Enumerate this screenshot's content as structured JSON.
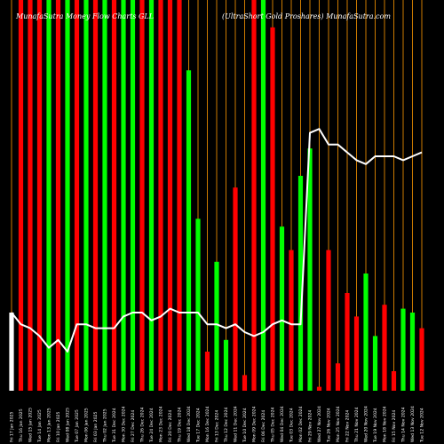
{
  "chart_data": {
    "type": "bar",
    "title": "MunafaSutra Money Flow Charts GLL",
    "subtitle": "(UltraShort Gold Proshares) MunafaSutra.com",
    "x": [
      "Fri 17 Jan 2025",
      "Thu 16 Jan 2025",
      "Wed 15 Jan 2025",
      "Tue 14 Jan 2025",
      "Mon 13 Jan 2025",
      "Fri 10 Jan 2025",
      "Wed 08 Jan 2025",
      "Tue 07 Jan 2025",
      "Mon 06 Jan 2025",
      "Fri 03 Jan 2025",
      "Thu 02 Jan 2025",
      "Tue 31 Dec 2024",
      "Mon 30 Dec 2024",
      "Fri 27 Dec 2024",
      "Thu 26 Dec 2024",
      "Tue 24 Dec 2024",
      "Mon 23 Dec 2024",
      "Fri 20 Dec 2024",
      "Thu 19 Dec 2024",
      "Wed 18 Dec 2024",
      "Tue 17 Dec 2024",
      "Mon 16 Dec 2024",
      "Fri 13 Dec 2024",
      "Thu 12 Dec 2024",
      "Wed 11 Dec 2024",
      "Tue 10 Dec 2024",
      "Mon 09 Dec 2024",
      "Fri 06 Dec 2024",
      "Thu 05 Dec 2024",
      "Wed 04 Dec 2024",
      "Tue 03 Dec 2024",
      "Mon 02 Dec 2024",
      "Fri 29 Nov 2024",
      "Wed 27 Nov 2024",
      "Tue 26 Nov 2024",
      "Mon 25 Nov 2024",
      "Fri 22 Nov 2024",
      "Thu 21 Nov 2024",
      "Wed 20 Nov 2024",
      "Tue 19 Nov 2024",
      "Mon 18 Nov 2024",
      "Fri 15 Nov 2024",
      "Thu 14 Nov 2024",
      "Wed 13 Nov 2024",
      "Tue 12 Nov 2024"
    ],
    "x_tick_labels": [
      "Fri 17 Jan 2025",
      "Thu 16 Jan 2025",
      "Wed 15 Jan 2025",
      "Tue 14 Jan 2025",
      "Mon 13 Jan 2025",
      "Fri 10 Jan 2025",
      "Wed 08 Jan 2025",
      "Tue 07 Jan 2025",
      "Mon 06 Jan 2025",
      "Fri 03 Jan 2025",
      "Thu 02 Jan 2025",
      "Tue 31 Dec 2024",
      "Mon 30 Dec 2024",
      "Fri 27 Dec 2024",
      "Thu 26 Dec 2024",
      "Tue 24 Dec 2024",
      "Mon 23 Dec 2024",
      "Fri 20 Dec 2024",
      "Thu 19 Dec 2024",
      "Wed 18 Dec 2024",
      "Tue 17 Dec 2024",
      "Mon 16 Dec 2024",
      "Fri 13 Dec 2024",
      "Thu 12 Dec 2024",
      "Wed 11 Dec 2024",
      "Tue 10 Dec 2024",
      "Mon 09 Dec 2024",
      "Fri 06 Dec 2024",
      "Thu 05 Dec 2024",
      "Wed 04 Dec 2024",
      "Tue 03 Dec 2024",
      "Mon 02 Dec 2024",
      "Fri 29 Nov 2024",
      "Wed 27 Nov 2024",
      "Tue 26 Nov 2024",
      "Mon 25 Nov 2024",
      "Fri 22 Nov 2024",
      "Thu 21 Nov 2024",
      "Wed 20 Nov 2024",
      "Tue 19 Nov 2024",
      "Mon 18 Nov 2024",
      "Fri 15 Nov 2024",
      "Thu 14 Nov 2024",
      "Wed 13 Nov 2024",
      "Tue 12 Nov 2024"
    ],
    "ylim": [
      0,
      100
    ],
    "grid": true,
    "series": [
      {
        "type": "bar",
        "values": [
          20,
          100,
          100,
          100,
          100,
          100,
          100,
          100,
          100,
          100,
          100,
          100,
          100,
          100,
          100,
          100,
          100,
          100,
          100,
          82,
          44,
          10,
          33,
          13,
          52,
          4,
          100,
          100,
          93,
          42,
          36,
          55,
          62,
          1,
          36,
          7,
          25,
          19,
          30,
          14,
          22,
          5,
          21,
          20,
          16
        ],
        "colors": [
          "#ffffff",
          "#ff0000",
          "#ff0000",
          "#ff0000",
          "#00ff00",
          "#ff0000",
          "#00ff00",
          "#ff0000",
          "#00ff00",
          "#ff0000",
          "#00ff00",
          "#ff0000",
          "#00ff00",
          "#00ff00",
          "#ff0000",
          "#00ff00",
          "#ff0000",
          "#ff0000",
          "#ff0000",
          "#00ff00",
          "#00ff00",
          "#ff0000",
          "#00ff00",
          "#00ff00",
          "#ff0000",
          "#ff0000",
          "#ff0000",
          "#00ff00",
          "#ff0000",
          "#00ff00",
          "#ff0000",
          "#00ff00",
          "#00ff00",
          "#ff0000",
          "#ff0000",
          "#ff0000",
          "#ff0000",
          "#ff0000",
          "#00ff00",
          "#00ff00",
          "#ff0000",
          "#ff0000",
          "#00ff00",
          "#00ff00",
          "#ff0000"
        ]
      },
      {
        "type": "line",
        "color": "#ffffff",
        "values": [
          20,
          17,
          16,
          14,
          11,
          13,
          10,
          17,
          17,
          16,
          16,
          16,
          19,
          20,
          20,
          18,
          19,
          21,
          20,
          20,
          20,
          17,
          17,
          16,
          17,
          15,
          14,
          15,
          17,
          18,
          17,
          17,
          66,
          67,
          63,
          63,
          61,
          59,
          58,
          60,
          60,
          60,
          59,
          60,
          61
        ]
      }
    ],
    "colors": {
      "up": "#00ff00",
      "down": "#ff0000",
      "grid": "#cc7a00",
      "line": "#ffffff",
      "background": "#000000"
    }
  }
}
